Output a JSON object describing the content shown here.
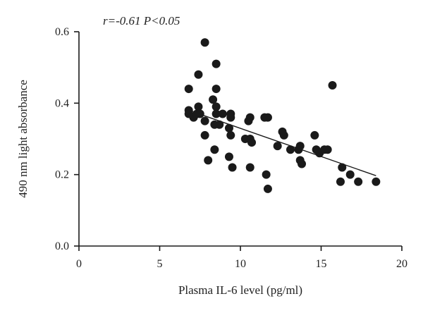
{
  "chart_data": {
    "type": "scatter",
    "title": "",
    "annotation": "r=-0.61 P<0.05",
    "xlabel": "Plasma IL-6 level (pg/ml)",
    "ylabel": "490 nm light absorbance",
    "xlim": [
      0,
      20
    ],
    "ylim": [
      0,
      0.6
    ],
    "xticks": [
      0,
      5,
      10,
      15,
      20
    ],
    "yticks": [
      0.0,
      0.2,
      0.4,
      0.6
    ],
    "xtick_labels": [
      "0",
      "5",
      "10",
      "15",
      "20"
    ],
    "ytick_labels": [
      "0.0",
      "0.2",
      "0.4",
      "0.6"
    ],
    "grid": false,
    "colors": {
      "points": "#1a1a1a",
      "line": "#1a1a1a",
      "axis": "#1a1a1a"
    },
    "trendline": {
      "x": [
        6.8,
        18.4
      ],
      "y": [
        0.38,
        0.197
      ]
    },
    "points": [
      {
        "x": 6.8,
        "y": 0.44
      },
      {
        "x": 6.8,
        "y": 0.38
      },
      {
        "x": 6.8,
        "y": 0.37
      },
      {
        "x": 7.1,
        "y": 0.36
      },
      {
        "x": 7.3,
        "y": 0.37
      },
      {
        "x": 7.4,
        "y": 0.48
      },
      {
        "x": 7.4,
        "y": 0.39
      },
      {
        "x": 7.5,
        "y": 0.37
      },
      {
        "x": 7.8,
        "y": 0.57
      },
      {
        "x": 7.8,
        "y": 0.35
      },
      {
        "x": 7.8,
        "y": 0.31
      },
      {
        "x": 8.0,
        "y": 0.24
      },
      {
        "x": 8.3,
        "y": 0.41
      },
      {
        "x": 8.4,
        "y": 0.34
      },
      {
        "x": 8.4,
        "y": 0.27
      },
      {
        "x": 8.5,
        "y": 0.51
      },
      {
        "x": 8.5,
        "y": 0.44
      },
      {
        "x": 8.5,
        "y": 0.39
      },
      {
        "x": 8.5,
        "y": 0.37
      },
      {
        "x": 8.7,
        "y": 0.34
      },
      {
        "x": 8.9,
        "y": 0.37
      },
      {
        "x": 9.3,
        "y": 0.33
      },
      {
        "x": 9.4,
        "y": 0.37
      },
      {
        "x": 9.4,
        "y": 0.36
      },
      {
        "x": 9.4,
        "y": 0.31
      },
      {
        "x": 9.3,
        "y": 0.25
      },
      {
        "x": 9.5,
        "y": 0.22
      },
      {
        "x": 10.3,
        "y": 0.3
      },
      {
        "x": 10.5,
        "y": 0.35
      },
      {
        "x": 10.6,
        "y": 0.36
      },
      {
        "x": 10.6,
        "y": 0.3
      },
      {
        "x": 10.7,
        "y": 0.29
      },
      {
        "x": 10.6,
        "y": 0.22
      },
      {
        "x": 11.5,
        "y": 0.36
      },
      {
        "x": 11.7,
        "y": 0.36
      },
      {
        "x": 11.6,
        "y": 0.2
      },
      {
        "x": 11.7,
        "y": 0.16
      },
      {
        "x": 12.3,
        "y": 0.28
      },
      {
        "x": 12.6,
        "y": 0.32
      },
      {
        "x": 12.7,
        "y": 0.31
      },
      {
        "x": 13.1,
        "y": 0.27
      },
      {
        "x": 13.6,
        "y": 0.27
      },
      {
        "x": 13.7,
        "y": 0.28
      },
      {
        "x": 13.7,
        "y": 0.24
      },
      {
        "x": 13.8,
        "y": 0.23
      },
      {
        "x": 14.6,
        "y": 0.31
      },
      {
        "x": 14.7,
        "y": 0.27
      },
      {
        "x": 14.9,
        "y": 0.26
      },
      {
        "x": 15.2,
        "y": 0.27
      },
      {
        "x": 15.4,
        "y": 0.27
      },
      {
        "x": 15.7,
        "y": 0.45
      },
      {
        "x": 16.2,
        "y": 0.18
      },
      {
        "x": 16.3,
        "y": 0.22
      },
      {
        "x": 16.8,
        "y": 0.2
      },
      {
        "x": 17.3,
        "y": 0.18
      },
      {
        "x": 18.4,
        "y": 0.18
      }
    ]
  }
}
